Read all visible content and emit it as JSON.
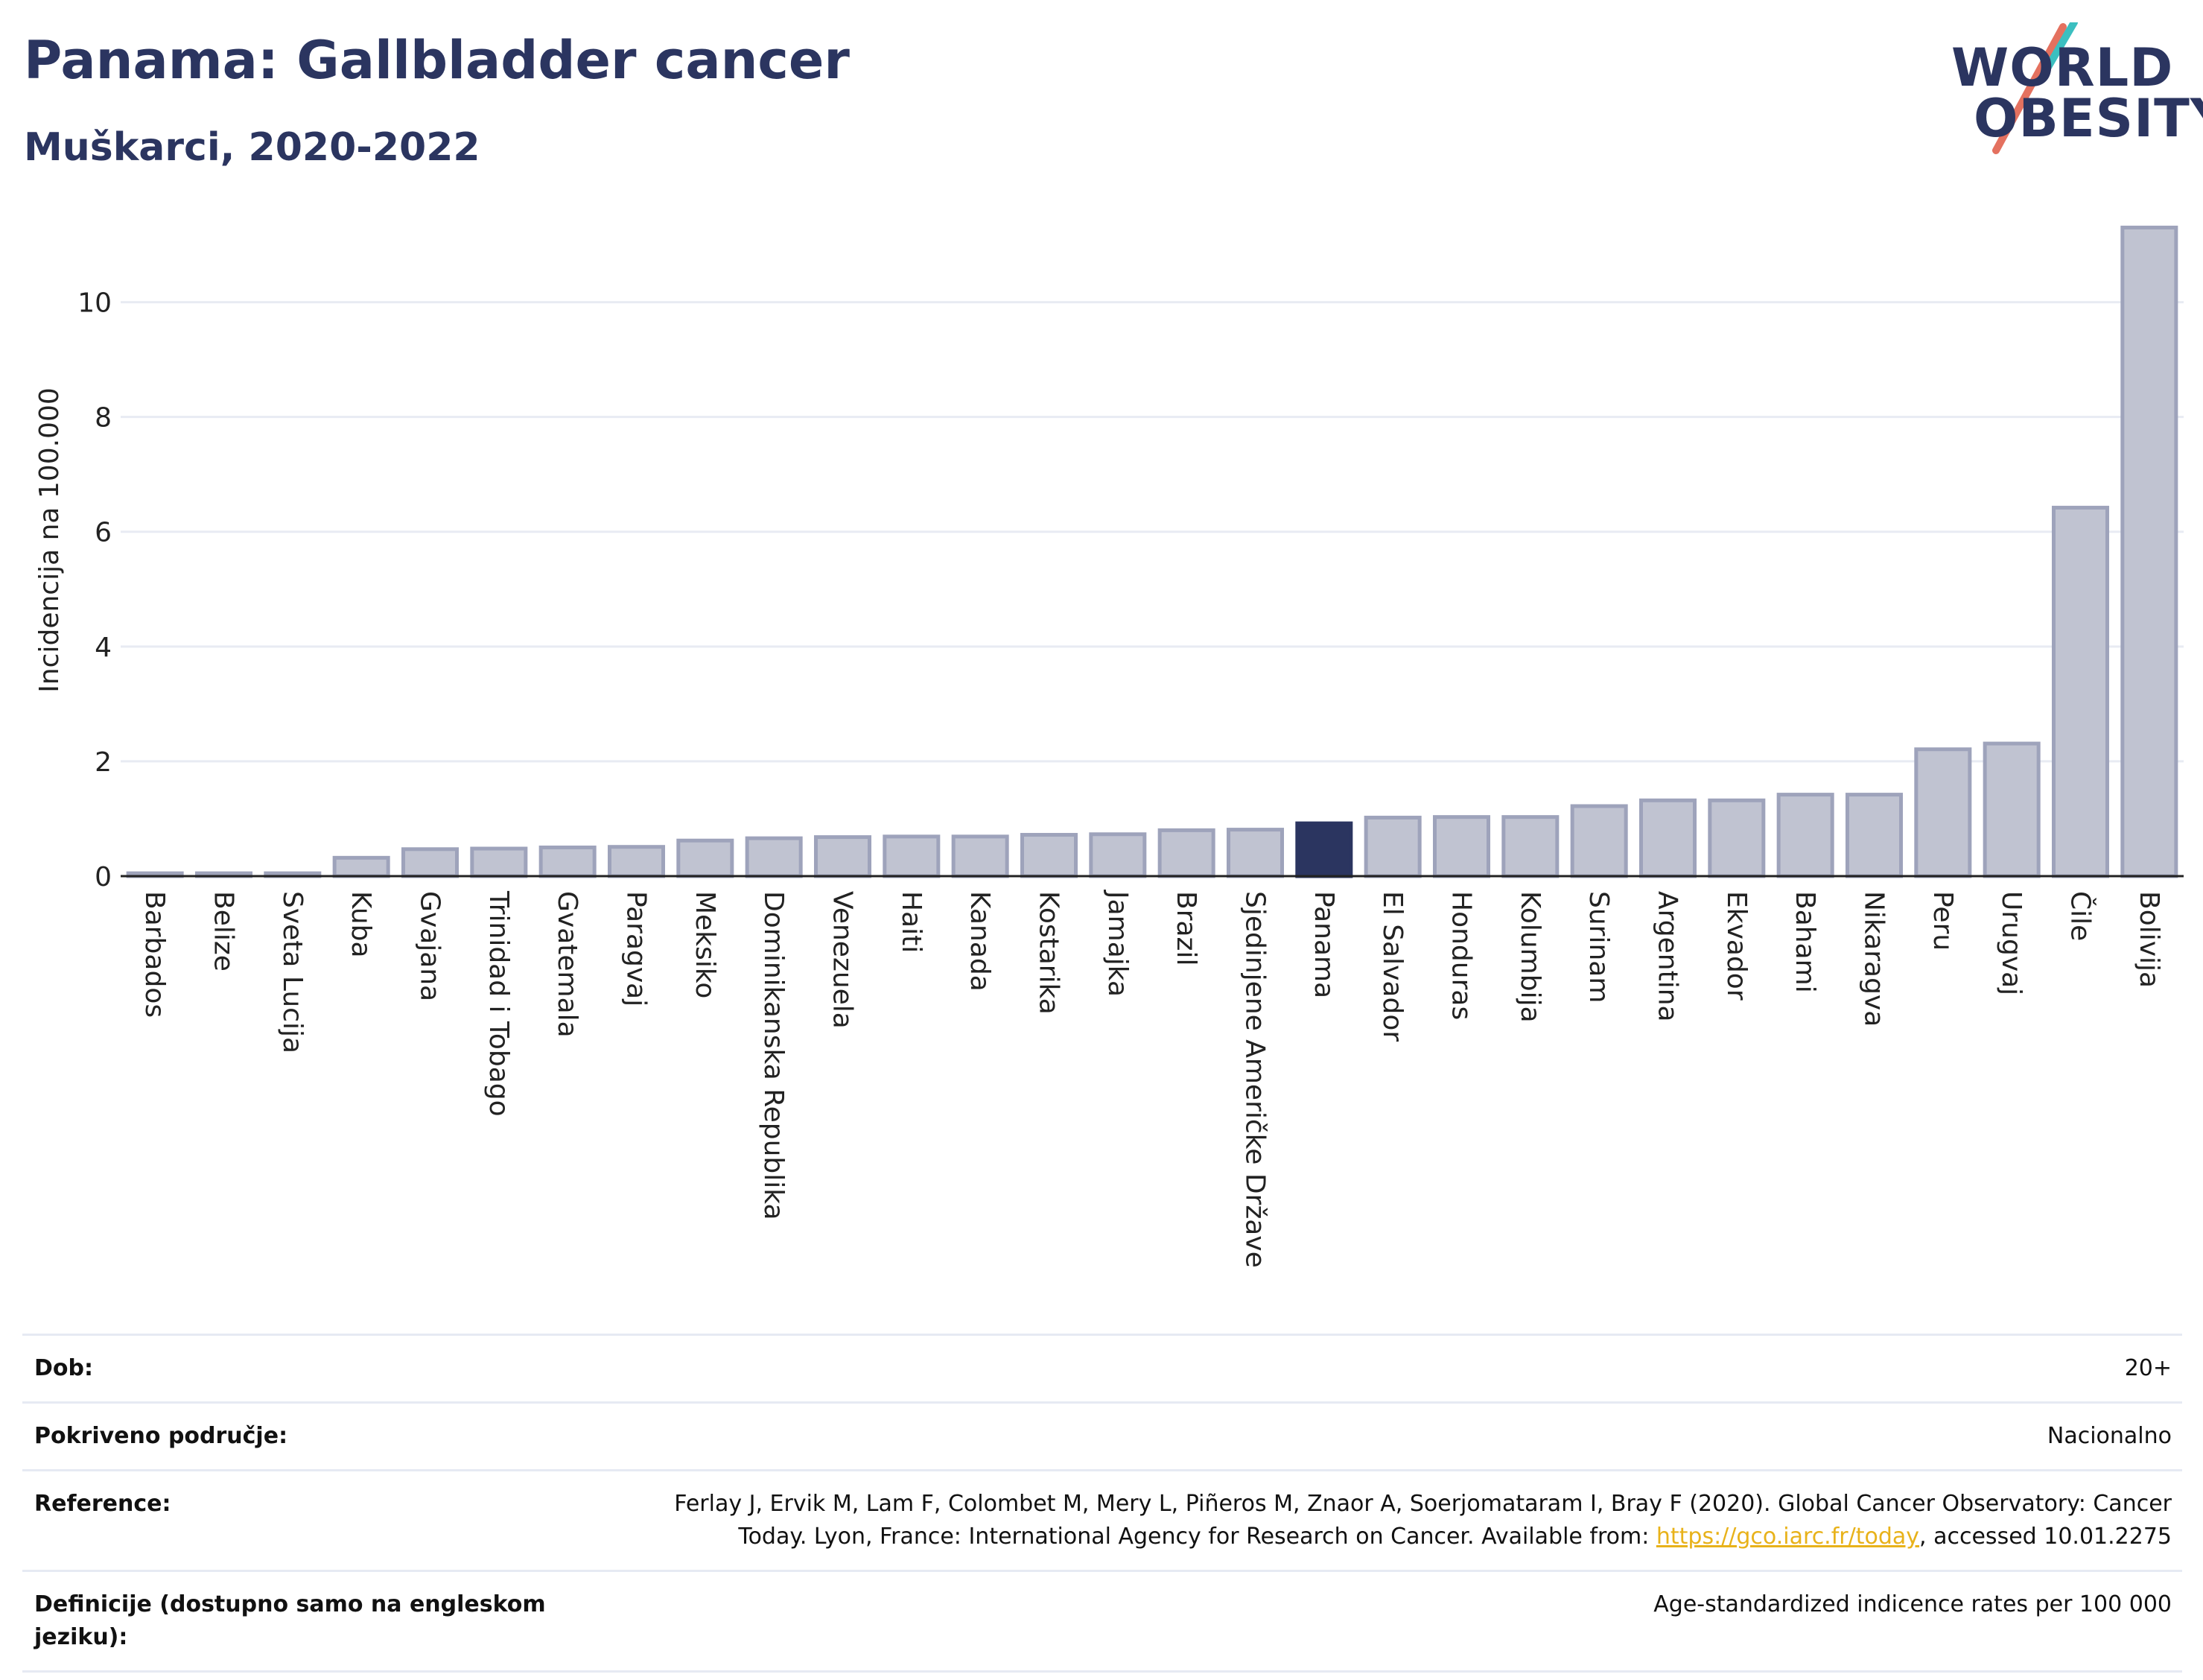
{
  "header": {
    "title": "Panama: Gallbladder cancer",
    "subtitle": "Muškarci, 2020-2022"
  },
  "logo": {
    "line1": "WORLD",
    "line2": "OBESITY"
  },
  "colors": {
    "highlight": "#2b3560",
    "bar_fill": "#c0c3d1",
    "bar_stroke": "#9ea3bb",
    "grid": "#e8ebf3",
    "logo_teal": "#3bbfc0",
    "logo_red": "#e4715f"
  },
  "chart_data": {
    "type": "bar",
    "ylabel": "Incidencija na 100.000",
    "ylim": [
      0,
      11.5
    ],
    "yticks": [
      0,
      2,
      4,
      6,
      8,
      10
    ],
    "grid": true,
    "highlight_category": "Panama",
    "categories": [
      "Barbados",
      "Belize",
      "Sveta Lucija",
      "Kuba",
      "Gvajana",
      "Trinidad i Tobago",
      "Gvatemala",
      "Paragvaj",
      "Meksiko",
      "Dominikanska Republika",
      "Venezuela",
      "Haiti",
      "Kanada",
      "Kostarika",
      "Jamajka",
      "Brazil",
      "Sjedinjene Američke Države",
      "Panama",
      "El Salvador",
      "Honduras",
      "Kolumbija",
      "Surinam",
      "Argentina",
      "Ekvador",
      "Bahami",
      "Nikaragva",
      "Peru",
      "Urugvaj",
      "Čile",
      "Bolivija"
    ],
    "values": [
      0.05,
      0.05,
      0.05,
      0.32,
      0.47,
      0.48,
      0.5,
      0.51,
      0.62,
      0.66,
      0.68,
      0.69,
      0.69,
      0.72,
      0.73,
      0.8,
      0.81,
      0.92,
      1.02,
      1.03,
      1.03,
      1.22,
      1.32,
      1.32,
      1.42,
      1.42,
      2.21,
      2.31,
      6.42,
      11.3
    ]
  },
  "info": {
    "age_label": "Dob:",
    "age_value": "20+",
    "coverage_label": "Pokriveno područje:",
    "coverage_value": "Nacionalno",
    "reference_label": "Reference:",
    "reference_line1": "Ferlay J, Ervik M, Lam F, Colombet M, Mery L, Piñeros M, Znaor A, Soerjomataram I, Bray F (2020). Global Cancer Observatory: Cancer",
    "reference_line2_pre": "Today. Lyon, France: International Agency for Research on Cancer. Available from: ",
    "reference_link": "https://gco.iarc.fr/today",
    "reference_line2_post": ", accessed 10.01.2275",
    "definitions_label": "Definicije (dostupno samo na engleskom jeziku):",
    "definitions_value": "Age-standardized indicence rates per 100 000"
  }
}
